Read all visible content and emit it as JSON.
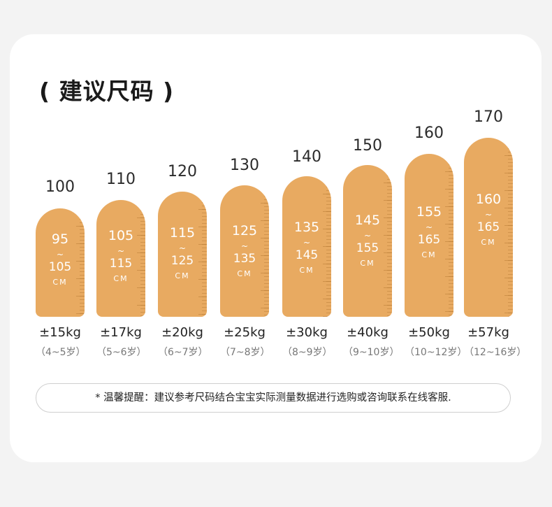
{
  "title": "( 建议尺码 )",
  "sizes": [
    {
      "size": "100",
      "range_min": "95",
      "range_max": "105",
      "unit": "CM",
      "weight": "±15kg",
      "age": "（4~5岁）"
    },
    {
      "size": "110",
      "range_min": "105",
      "range_max": "115",
      "unit": "CM",
      "weight": "±17kg",
      "age": "（5~6岁）"
    },
    {
      "size": "120",
      "range_min": "115",
      "range_max": "125",
      "unit": "CM",
      "weight": "±20kg",
      "age": "（6~7岁）"
    },
    {
      "size": "130",
      "range_min": "125",
      "range_max": "135",
      "unit": "CM",
      "weight": "±25kg",
      "age": "（7~8岁）"
    },
    {
      "size": "140",
      "range_min": "135",
      "range_max": "145",
      "unit": "CM",
      "weight": "±30kg",
      "age": "（8~9岁）"
    },
    {
      "size": "150",
      "range_min": "145",
      "range_max": "155",
      "unit": "CM",
      "weight": "±40kg",
      "age": "（9~10岁）"
    },
    {
      "size": "160",
      "range_min": "155",
      "range_max": "165",
      "unit": "CM",
      "weight": "±50kg",
      "age": "（10~12岁）"
    },
    {
      "size": "170",
      "range_min": "160",
      "range_max": "165",
      "unit": "CM",
      "weight": "±57kg",
      "age": "（12~16岁）"
    }
  ],
  "tilde": "~",
  "note": "* 温馨提醒：建议参考尺码结合宝宝实际测量数据进行选购或咨询联系在线客服.",
  "colors": {
    "pill": "#e8aa61",
    "background": "#f3f3f3",
    "card": "#ffffff"
  }
}
